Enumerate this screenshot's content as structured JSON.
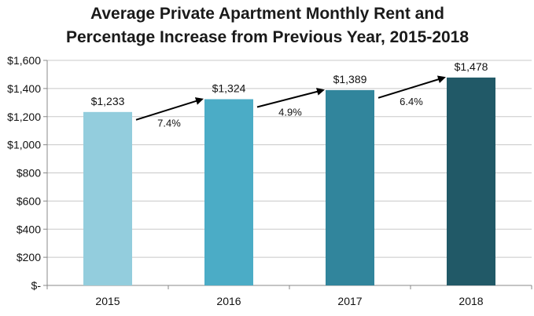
{
  "chart_data": {
    "type": "bar",
    "title_line1": "Average Private Apartment Monthly Rent and",
    "title_line2": "Percentage Increase from Previous Year, 2015-2018",
    "categories": [
      "2015",
      "2016",
      "2017",
      "2018"
    ],
    "values": [
      1233,
      1324,
      1389,
      1478
    ],
    "value_labels": [
      "$1,233",
      "$1,324",
      "$1,389",
      "$1,478"
    ],
    "bar_colors": [
      "#93cddd",
      "#4bacc6",
      "#31859c",
      "#215967"
    ],
    "increases": [
      "7.4%",
      "4.9%",
      "6.4%"
    ],
    "ylim": [
      0,
      1600
    ],
    "yticks": [
      0,
      200,
      400,
      600,
      800,
      1000,
      1200,
      1400,
      1600
    ],
    "ytick_labels": [
      "$-",
      "$200",
      "$400",
      "$600",
      "$800",
      "$1,000",
      "$1,200",
      "$1,400",
      "$1,600"
    ],
    "grid": true,
    "xlabel": "",
    "ylabel": ""
  }
}
